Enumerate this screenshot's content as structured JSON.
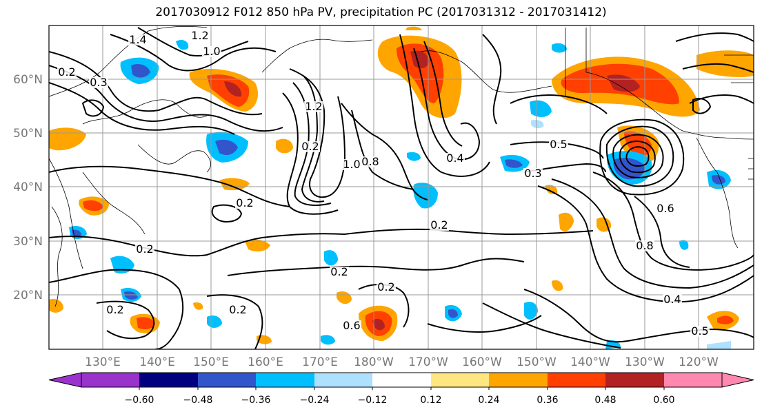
{
  "title": "2017030912 F012 850 hPa PV, precipitation PC (2017031312 - 2017031412)",
  "lat_labels": [
    "60°N",
    "50°N",
    "40°N",
    "30°N",
    "20°N"
  ],
  "lon_labels": [
    "130°E",
    "140°E",
    "150°E",
    "160°E",
    "170°E",
    "180°W",
    "170°W",
    "160°W",
    "150°W",
    "140°W",
    "130°W",
    "120°W"
  ],
  "colorbar": {
    "colors": [
      "#9933cc",
      "#000080",
      "#3355cc",
      "#00bfff",
      "#aee0ff",
      "#ffffff",
      "#ffe680",
      "#ffa500",
      "#ff4000",
      "#b22222",
      "#ff88b0"
    ],
    "ticks": [
      "−0.60",
      "−0.48",
      "−0.36",
      "−0.24",
      "−0.12",
      "0.12",
      "0.24",
      "0.36",
      "0.48",
      "0.60"
    ]
  },
  "contour_labels": [
    {
      "text": "1.4"
    },
    {
      "text": "1.2"
    },
    {
      "text": "1.0"
    },
    {
      "text": "0.2"
    },
    {
      "text": "0.3"
    },
    {
      "text": "0.2"
    },
    {
      "text": "0.2"
    },
    {
      "text": "1.2"
    },
    {
      "text": "1.0"
    },
    {
      "text": "0.8"
    },
    {
      "text": "0.4"
    },
    {
      "text": "0.5"
    },
    {
      "text": "0.3"
    },
    {
      "text": "0.2"
    },
    {
      "text": "0.2"
    },
    {
      "text": "0.2"
    },
    {
      "text": "0.2"
    },
    {
      "text": "0.2"
    },
    {
      "text": "0.6"
    },
    {
      "text": "0.2"
    },
    {
      "text": "0.4"
    },
    {
      "text": "0.5"
    },
    {
      "text": "0.6"
    },
    {
      "text": "0.8"
    }
  ]
}
